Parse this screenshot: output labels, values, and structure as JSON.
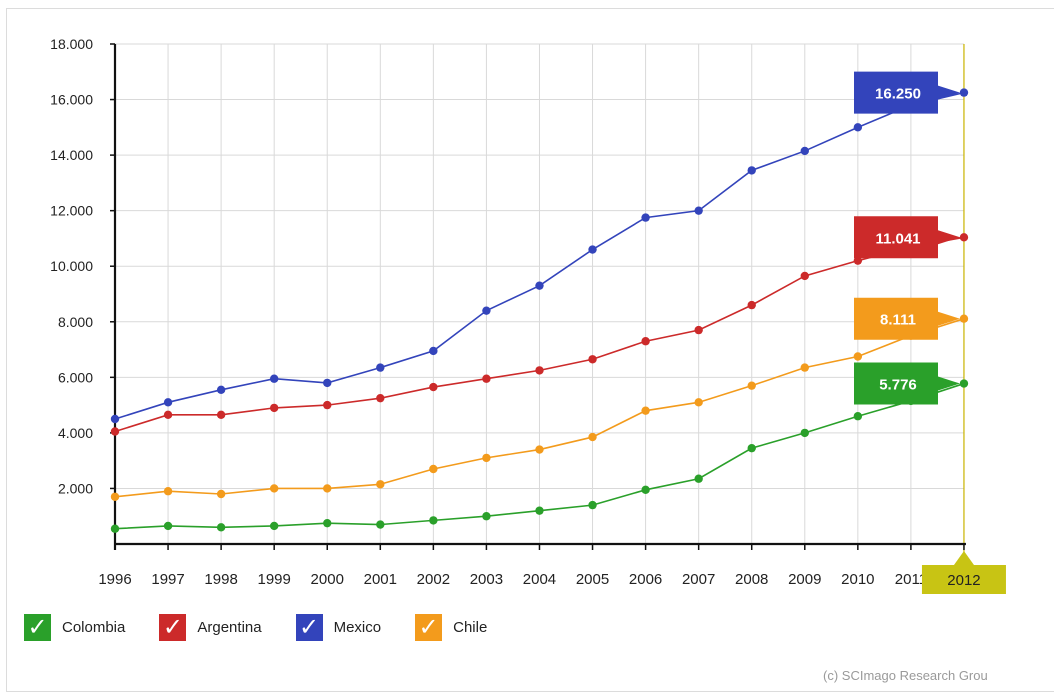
{
  "chart_data": {
    "type": "line",
    "x": [
      "1996",
      "1997",
      "1998",
      "1999",
      "2000",
      "2001",
      "2002",
      "2003",
      "2004",
      "2005",
      "2006",
      "2007",
      "2008",
      "2009",
      "2010",
      "2011",
      "2012"
    ],
    "y_ticks": [
      "18.000",
      "16.000",
      "14.000",
      "12.000",
      "10.000",
      "8.000",
      "6.000",
      "4.000",
      "2.000"
    ],
    "ylim": [
      0,
      18000
    ],
    "grid": true,
    "highlighted_x": "2012",
    "series": [
      {
        "name": "Mexico",
        "color": "#3344bb",
        "values": [
          4500,
          5100,
          5550,
          5950,
          5800,
          6350,
          6950,
          8400,
          9300,
          10600,
          11750,
          12000,
          13450,
          14150,
          15000,
          15800,
          16250
        ],
        "end_label": "16.250"
      },
      {
        "name": "Argentina",
        "color": "#cc2a2a",
        "values": [
          4050,
          4650,
          4650,
          4900,
          5000,
          5250,
          5650,
          5950,
          6250,
          6650,
          7300,
          7700,
          8600,
          9650,
          10200,
          10700,
          11041
        ],
        "end_label": "11.041"
      },
      {
        "name": "Chile",
        "color": "#f39b1c",
        "values": [
          1700,
          1900,
          1800,
          2000,
          2000,
          2150,
          2700,
          3100,
          3400,
          3850,
          4800,
          5100,
          5700,
          6350,
          6750,
          7500,
          8111
        ],
        "end_label": "8.111"
      },
      {
        "name": "Colombia",
        "color": "#2aa02a",
        "values": [
          550,
          650,
          600,
          650,
          750,
          700,
          850,
          1000,
          1200,
          1400,
          1950,
          2350,
          3450,
          4000,
          4600,
          5150,
          5776
        ],
        "end_label": "5.776"
      }
    ]
  },
  "legend": [
    {
      "name": "Colombia",
      "color": "#2aa02a",
      "check": "✓"
    },
    {
      "name": "Argentina",
      "color": "#cc2a2a",
      "check": "✓"
    },
    {
      "name": "Mexico",
      "color": "#3344bb",
      "check": "✓"
    },
    {
      "name": "Chile",
      "color": "#f39b1c",
      "check": "✓"
    }
  ],
  "credit": "(c) SCImago Research Grou"
}
